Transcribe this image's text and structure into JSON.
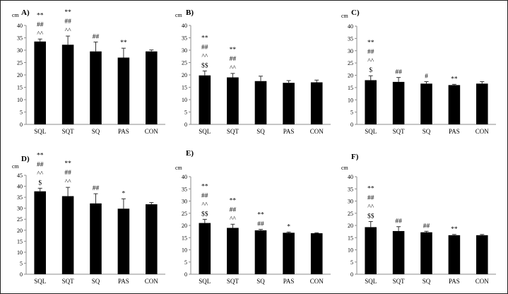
{
  "chart_data": [
    {
      "type": "bar",
      "panel_label": "A)",
      "unit_label": "cm",
      "categories": [
        "SQL",
        "SQT",
        "SQ",
        "PAS",
        "CON"
      ],
      "values": [
        33.5,
        32.2,
        29.5,
        27.0,
        29.5
      ],
      "errors": [
        1.0,
        3.5,
        3.8,
        3.8,
        0.6
      ],
      "annotations": [
        [
          "**",
          "##",
          "^^"
        ],
        [
          "**",
          "##",
          "^^"
        ],
        [
          "##"
        ],
        [
          "**"
        ],
        []
      ],
      "yticks": [
        0,
        5,
        10,
        15,
        20,
        25,
        30,
        35,
        40
      ],
      "ylim": [
        0,
        40
      ]
    },
    {
      "type": "bar",
      "panel_label": "B)",
      "unit_label": "cm",
      "categories": [
        "SQL",
        "SQT",
        "SQ",
        "PAS",
        "CON"
      ],
      "values": [
        19.8,
        19.0,
        17.5,
        16.8,
        17.0
      ],
      "errors": [
        1.8,
        1.6,
        2.0,
        0.9,
        0.9
      ],
      "annotations": [
        [
          "**",
          "##",
          "^^",
          "$$"
        ],
        [
          "**",
          "##",
          "^^"
        ],
        [],
        [],
        []
      ],
      "yticks": [
        0,
        5,
        10,
        15,
        20,
        25,
        30,
        35,
        40
      ],
      "ylim": [
        0,
        40
      ]
    },
    {
      "type": "bar",
      "panel_label": "C)",
      "unit_label": "cm",
      "categories": [
        "SQL",
        "SQT",
        "SQ",
        "PAS",
        "CON"
      ],
      "values": [
        18.0,
        17.3,
        16.6,
        16.0,
        16.6
      ],
      "errors": [
        1.8,
        1.8,
        0.8,
        0.3,
        0.8
      ],
      "annotations": [
        [
          "**",
          "##",
          "^^",
          "$"
        ],
        [
          "##"
        ],
        [
          "#"
        ],
        [
          "**"
        ],
        []
      ],
      "yticks": [
        0,
        5,
        10,
        15,
        20,
        25,
        30,
        35,
        40
      ],
      "ylim": [
        0,
        40
      ]
    },
    {
      "type": "bar",
      "panel_label": "D)",
      "unit_label": "cm",
      "categories": [
        "SQL",
        "SQT",
        "SQ",
        "PAS",
        "CON"
      ],
      "values": [
        37.7,
        35.5,
        32.2,
        29.8,
        31.8
      ],
      "errors": [
        1.4,
        4.0,
        4.4,
        4.5,
        0.8
      ],
      "annotations": [
        [
          "**",
          "##",
          "^^",
          "$"
        ],
        [
          "**",
          "##",
          "^^"
        ],
        [
          "##"
        ],
        [
          "*"
        ],
        []
      ],
      "yticks": [
        0,
        5,
        10,
        15,
        20,
        25,
        30,
        35,
        40,
        45
      ],
      "ylim": [
        0,
        45
      ]
    },
    {
      "type": "bar",
      "panel_label": "E)",
      "unit_label": "cm",
      "categories": [
        "SQL",
        "SQT",
        "SQ",
        "PAS",
        "CON"
      ],
      "values": [
        21.0,
        19.0,
        18.0,
        17.0,
        16.8
      ],
      "errors": [
        1.5,
        1.5,
        0.4,
        0.3,
        0.2
      ],
      "annotations": [
        [
          "**",
          "##",
          "^^",
          "$$"
        ],
        [
          "**",
          "##",
          "^^"
        ],
        [
          "**",
          "##"
        ],
        [
          "*"
        ],
        []
      ],
      "yticks": [
        0,
        5,
        10,
        15,
        20,
        25,
        30,
        35,
        40
      ],
      "ylim": [
        0,
        40
      ]
    },
    {
      "type": "bar",
      "panel_label": "F)",
      "unit_label": "cm",
      "categories": [
        "SQL",
        "SQT",
        "SQ",
        "PAS",
        "CON"
      ],
      "values": [
        19.3,
        17.7,
        17.2,
        16.0,
        16.0
      ],
      "errors": [
        2.3,
        1.8,
        0.4,
        0.3,
        0.3
      ],
      "annotations": [
        [
          "**",
          "##",
          "^^",
          "$$"
        ],
        [
          "##"
        ],
        [
          "##"
        ],
        [
          "**"
        ],
        []
      ],
      "yticks": [
        0,
        5,
        10,
        15,
        20,
        25,
        30,
        35,
        40
      ],
      "ylim": [
        0,
        40
      ]
    }
  ],
  "colors": {
    "bar": "#000000",
    "axis": "#8c8c8c",
    "frame": "#222222"
  }
}
